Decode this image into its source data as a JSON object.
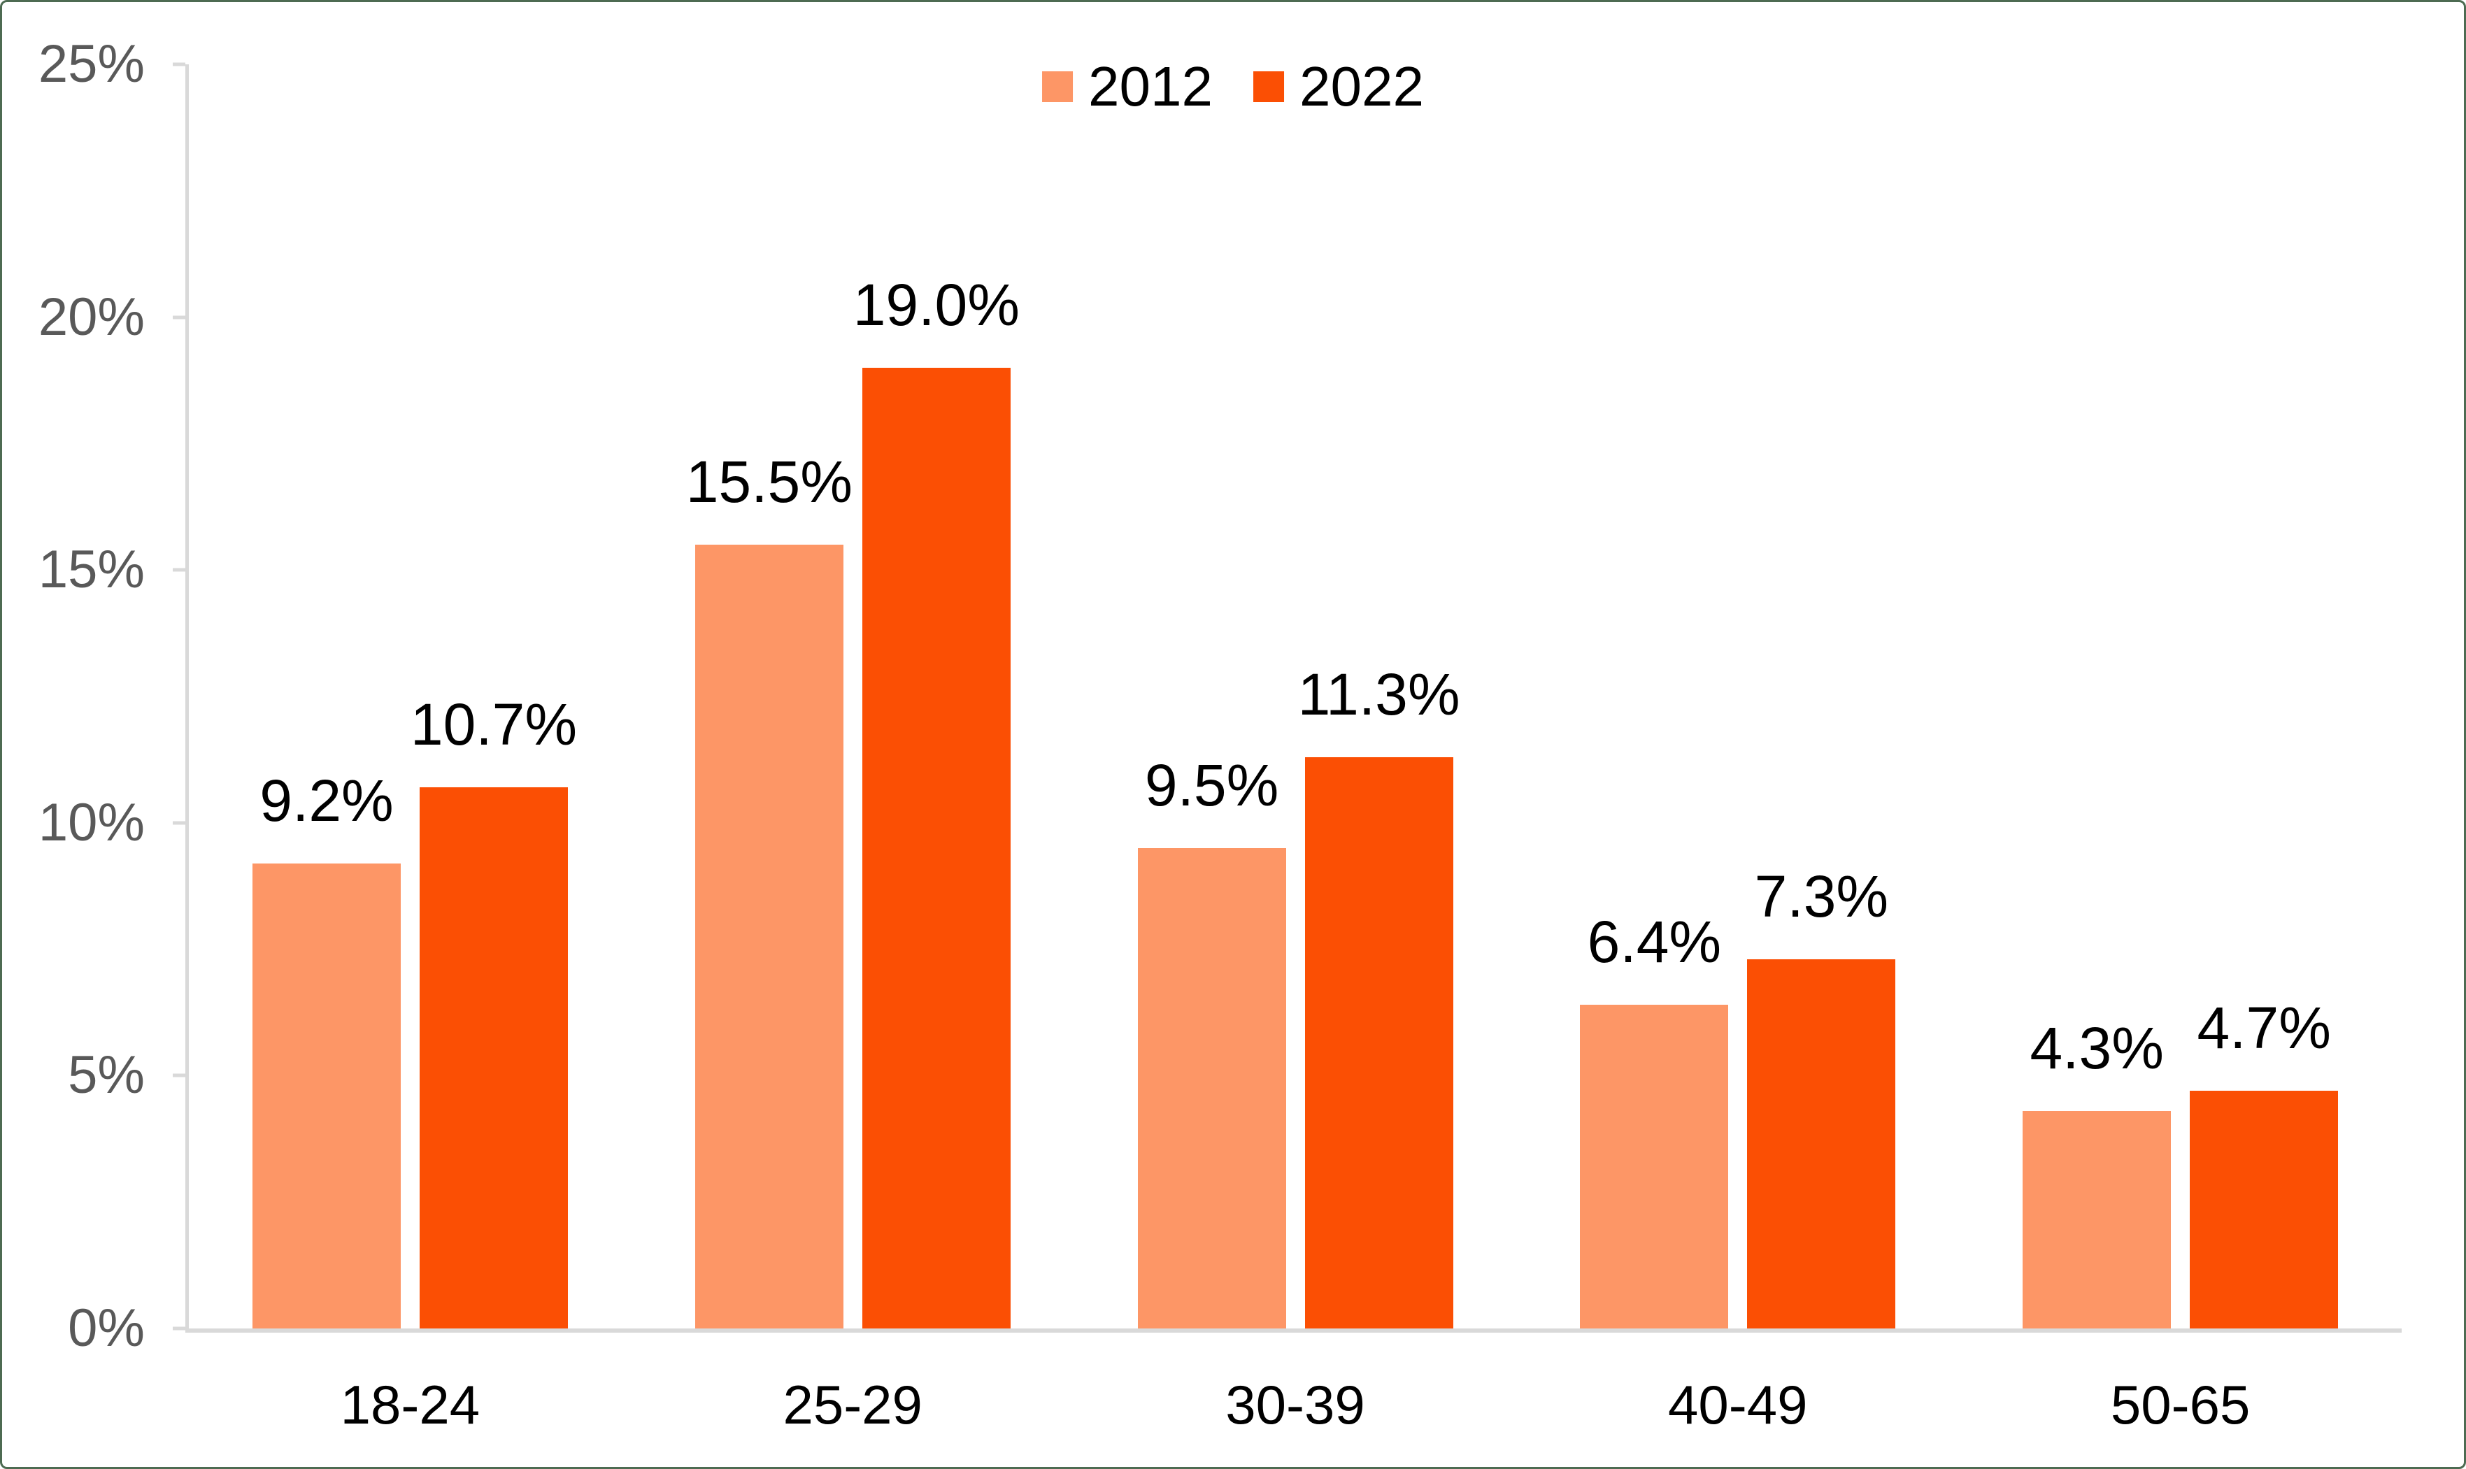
{
  "chart_data": {
    "type": "bar",
    "title": "",
    "xlabel": "",
    "ylabel": "",
    "categories": [
      "18-24",
      "25-29",
      "30-39",
      "40-49",
      "50-65"
    ],
    "series": [
      {
        "name": "2012",
        "color": "#fd9666",
        "values": [
          9.2,
          15.5,
          9.5,
          6.4,
          4.3
        ],
        "labels": [
          "9.2%",
          "15.5%",
          "9.5%",
          "6.4%",
          "4.3%"
        ]
      },
      {
        "name": "2022",
        "color": "#fb4f04",
        "values": [
          10.7,
          19.0,
          11.3,
          7.3,
          4.7
        ],
        "labels": [
          "10.7%",
          "19.0%",
          "11.3%",
          "7.3%",
          "4.7%"
        ]
      }
    ],
    "ylim": [
      0,
      25
    ],
    "yticks": [
      {
        "value": 0,
        "label": "0%"
      },
      {
        "value": 5,
        "label": "5%"
      },
      {
        "value": 10,
        "label": "10%"
      },
      {
        "value": 15,
        "label": "15%"
      },
      {
        "value": 20,
        "label": "20%"
      },
      {
        "value": 25,
        "label": "25%"
      }
    ],
    "grid": false,
    "legend_position": "top-center",
    "colors": {
      "axis_line": "#d9d9d9",
      "y_tick_text": "#595959",
      "x_tick_text": "#000000",
      "data_label_text": "#000000",
      "frame_border": "#4d6b52",
      "background": "#ffffff"
    }
  }
}
